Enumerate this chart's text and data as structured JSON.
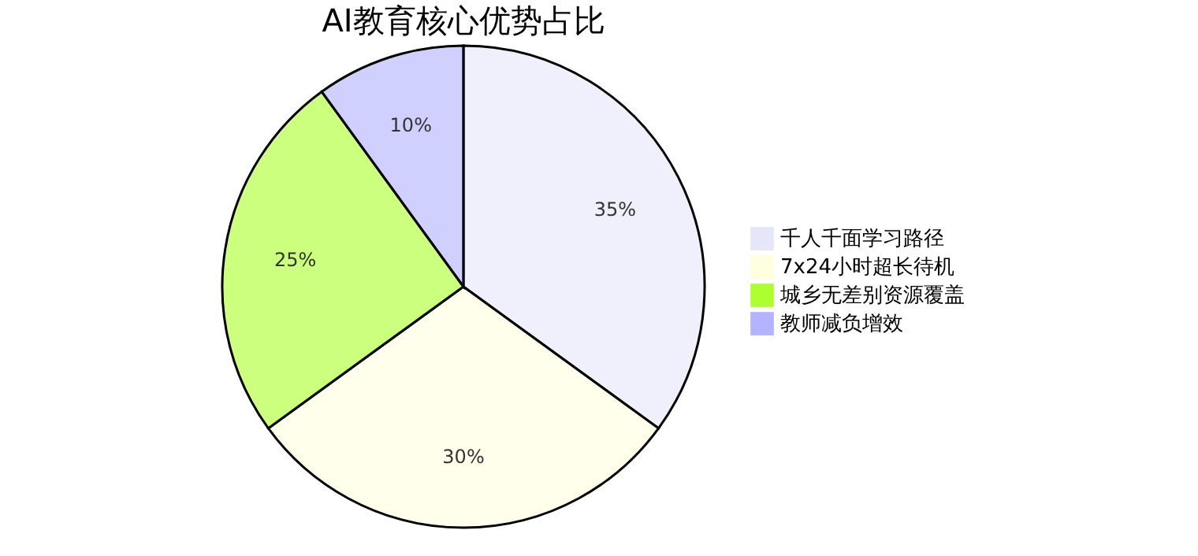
{
  "chart_data": {
    "type": "pie",
    "title": "AI教育核心优势占比",
    "categories": [
      "千人千面学习路径",
      "7x24小时超长待机",
      "城乡无差别资源覆盖",
      "教师减负增效"
    ],
    "values": [
      35,
      30,
      25,
      10
    ],
    "colors": [
      "#e6e6fa",
      "#ffffe0",
      "#adff2f",
      "#b3b3ff"
    ],
    "value_labels": [
      "35%",
      "30%",
      "25%",
      "10%"
    ],
    "legend": "right"
  }
}
